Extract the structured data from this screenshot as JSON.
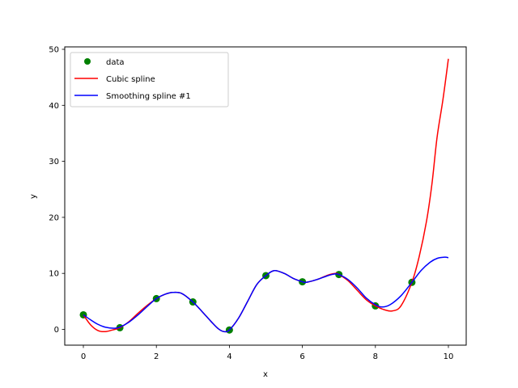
{
  "chart_data": {
    "type": "line",
    "title": "",
    "xlabel": "x",
    "ylabel": "y",
    "xlim": [
      -0.5,
      10.5
    ],
    "ylim": [
      -2.9,
      50.5
    ],
    "xticks": [
      0,
      2,
      4,
      6,
      8,
      10
    ],
    "yticks": [
      0,
      10,
      20,
      30,
      40,
      50
    ],
    "grid": false,
    "legend_position": "upper left",
    "series": [
      {
        "name": "data",
        "kind": "scatter",
        "color": "#008000",
        "x": [
          0,
          1,
          2,
          3,
          4,
          5,
          6,
          7,
          8,
          9
        ],
        "y": [
          2.6,
          0.3,
          5.5,
          4.9,
          -0.1,
          9.6,
          8.5,
          9.8,
          4.2,
          8.4
        ]
      },
      {
        "name": "Cubic spline",
        "kind": "line",
        "color": "#ff0000",
        "x": [
          0,
          0.2,
          0.4,
          0.6,
          0.8,
          1.0,
          1.25,
          1.5,
          1.75,
          2.0,
          2.25,
          2.45,
          2.7,
          3.0,
          3.25,
          3.5,
          3.7,
          3.86,
          4.0,
          4.25,
          4.5,
          4.75,
          5.0,
          5.23,
          5.5,
          5.75,
          6.0,
          6.1,
          6.4,
          6.7,
          6.9,
          7.0,
          7.25,
          7.5,
          7.75,
          8.0,
          8.25,
          8.47,
          8.7,
          9.0,
          9.2,
          9.4,
          9.55,
          9.69,
          9.85,
          10.0
        ],
        "y": [
          2.6,
          0.8,
          -0.2,
          -0.4,
          -0.1,
          0.3,
          1.4,
          2.9,
          4.3,
          5.5,
          6.3,
          6.6,
          6.4,
          4.9,
          3.2,
          1.4,
          0.1,
          -0.4,
          -0.1,
          2.0,
          5.0,
          8.0,
          9.6,
          10.5,
          10.0,
          9.1,
          8.5,
          8.4,
          8.9,
          9.7,
          10.0,
          9.8,
          8.7,
          7.0,
          5.3,
          4.2,
          3.5,
          3.3,
          4.2,
          8.4,
          13.0,
          19.3,
          26.0,
          34.3,
          41.0,
          48.3
        ]
      },
      {
        "name": "Smoothing spline #1",
        "kind": "line",
        "color": "#0000ff",
        "x": [
          0,
          0.2,
          0.4,
          0.6,
          0.85,
          1.0,
          1.25,
          1.5,
          1.75,
          2.0,
          2.25,
          2.45,
          2.7,
          3.0,
          3.25,
          3.5,
          3.7,
          3.86,
          4.0,
          4.25,
          4.5,
          4.75,
          5.0,
          5.23,
          5.5,
          5.75,
          6.0,
          6.1,
          6.4,
          6.7,
          6.9,
          7.0,
          7.25,
          7.5,
          7.75,
          8.0,
          8.18,
          8.4,
          8.7,
          9.0,
          9.25,
          9.5,
          9.7,
          9.9,
          10.0
        ],
        "y": [
          2.6,
          1.7,
          0.9,
          0.4,
          0.2,
          0.4,
          1.3,
          2.6,
          4.1,
          5.5,
          6.3,
          6.6,
          6.4,
          4.9,
          3.2,
          1.4,
          0.1,
          -0.4,
          -0.1,
          2.0,
          5.0,
          8.0,
          9.6,
          10.5,
          10.0,
          9.1,
          8.5,
          8.4,
          8.9,
          9.6,
          9.9,
          9.8,
          8.9,
          7.4,
          5.6,
          4.4,
          4.0,
          4.4,
          6.0,
          8.4,
          10.5,
          12.0,
          12.7,
          12.9,
          12.8
        ]
      }
    ]
  },
  "axes": {
    "xlabel": "x",
    "ylabel": "y"
  },
  "legend": {
    "items": [
      {
        "label": "data",
        "color": "#008000",
        "marker": "circle"
      },
      {
        "label": "Cubic spline",
        "color": "#ff0000",
        "marker": "line"
      },
      {
        "label": "Smoothing spline #1",
        "color": "#0000ff",
        "marker": "line"
      }
    ]
  }
}
